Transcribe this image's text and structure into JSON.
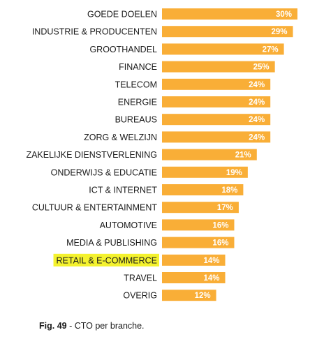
{
  "chart_data": {
    "type": "bar",
    "orientation": "horizontal",
    "categories": [
      "GOEDE DOELEN",
      "INDUSTRIE & PRODUCENTEN",
      "GROOTHANDEL",
      "FINANCE",
      "TELECOM",
      "ENERGIE",
      "BUREAUS",
      "ZORG & WELZIJN",
      "ZAKELIJKE DIENSTVERLENING",
      "ONDERWIJS & EDUCATIE",
      "ICT & INTERNET",
      "CULTUUR & ENTERTAINMENT",
      "AUTOMOTIVE",
      "MEDIA & PUBLISHING",
      "RETAIL & E-COMMERCE",
      "TRAVEL",
      "OVERIG"
    ],
    "values": [
      30,
      29,
      27,
      25,
      24,
      24,
      24,
      24,
      21,
      19,
      18,
      17,
      16,
      16,
      14,
      14,
      12
    ],
    "value_labels": [
      "30%",
      "29%",
      "27%",
      "25%",
      "24%",
      "24%",
      "24%",
      "24%",
      "21%",
      "19%",
      "18%",
      "17%",
      "16%",
      "16%",
      "14%",
      "14%",
      "12%"
    ],
    "unit": "%",
    "highlighted_category": "RETAIL & E-COMMERCE",
    "xlim": [
      0,
      30
    ],
    "grid": false,
    "legend": "none",
    "bar_color": "#F9AE37",
    "highlight_color": "#F4F22E"
  },
  "caption": {
    "figure_number": "Fig. 49",
    "separator": " -  ",
    "text": "CTO per branche."
  }
}
